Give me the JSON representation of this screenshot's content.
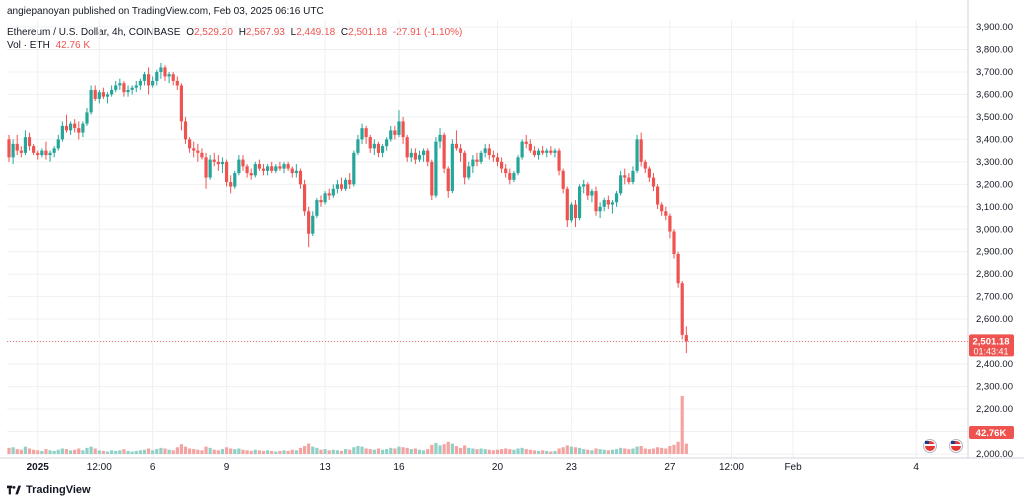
{
  "header": {
    "publisher": "angiepanoyan published on TradingView.com, Feb 03, 2025 06:16 UTC",
    "symbol": "Ethereum / U.S. Dollar, 4h, COINBASE",
    "ohlc": {
      "o_label": "O",
      "o": "2,529.20",
      "h_label": "H",
      "h": "2,567.93",
      "l_label": "L",
      "l": "2,449.18",
      "c_label": "C",
      "c": "2,501.18",
      "change": "-27.91 (-1.10%)"
    },
    "volume_label": "Vol · ETH",
    "volume_value": "42.76 K"
  },
  "footer": {
    "brand": "TradingView"
  },
  "colors": {
    "up": "#26a69a",
    "down": "#ef5350",
    "up_vol": "#8fd1c7",
    "down_vol": "#f5a3a1",
    "grid": "#eef0f3"
  },
  "price_badge": {
    "price": "2,501.18",
    "countdown": "01:43:41"
  },
  "volume_badge": "42.76K",
  "icons": [
    "event-flag-icon",
    "event-flag-icon"
  ],
  "chart_data": {
    "type": "candlestick",
    "timeframe": "4h",
    "y_ticks": [
      "3,900.00",
      "3,800.00",
      "3,700.00",
      "3,600.00",
      "3,500.00",
      "3,400.00",
      "3,300.00",
      "3,200.00",
      "3,100.00",
      "3,000.00",
      "2,900.00",
      "2,800.00",
      "2,700.00",
      "2,600.00",
      "2,500.00",
      "2,400.00",
      "2,300.00",
      "2,200.00",
      "2,100.00",
      "2,000.00"
    ],
    "y_tick_values": [
      3900,
      3800,
      3700,
      3600,
      3500,
      3400,
      3300,
      3200,
      3100,
      3000,
      2900,
      2800,
      2700,
      2600,
      2500,
      2400,
      2300,
      2200,
      2100,
      2000
    ],
    "ylim": [
      2000,
      3950
    ],
    "x_ticks": [
      {
        "label": "2025",
        "index": 7,
        "bold": true
      },
      {
        "label": "12:00",
        "index": 22,
        "bold": false
      },
      {
        "label": "6",
        "index": 35,
        "bold": false
      },
      {
        "label": "9",
        "index": 53,
        "bold": false
      },
      {
        "label": "13",
        "index": 77,
        "bold": false
      },
      {
        "label": "16",
        "index": 95,
        "bold": false
      },
      {
        "label": "20",
        "index": 119,
        "bold": false
      },
      {
        "label": "23",
        "index": 137,
        "bold": false
      },
      {
        "label": "27",
        "index": 161,
        "bold": false
      },
      {
        "label": "12:00",
        "index": 176,
        "bold": false
      },
      {
        "label": "Feb",
        "index": 191,
        "bold": false
      },
      {
        "label": "4",
        "index": 221,
        "bold": false
      }
    ],
    "candles": [
      [
        3400,
        3420,
        3300,
        3320,
        10
      ],
      [
        3320,
        3400,
        3290,
        3380,
        11
      ],
      [
        3380,
        3420,
        3330,
        3350,
        8
      ],
      [
        3350,
        3370,
        3320,
        3340,
        7
      ],
      [
        3340,
        3440,
        3330,
        3410,
        12
      ],
      [
        3410,
        3430,
        3350,
        3370,
        9
      ],
      [
        3370,
        3380,
        3330,
        3340,
        7
      ],
      [
        3340,
        3350,
        3310,
        3330,
        6
      ],
      [
        3330,
        3360,
        3320,
        3350,
        5
      ],
      [
        3350,
        3390,
        3310,
        3330,
        8
      ],
      [
        3330,
        3350,
        3300,
        3340,
        6
      ],
      [
        3340,
        3370,
        3320,
        3360,
        5
      ],
      [
        3360,
        3420,
        3350,
        3400,
        7
      ],
      [
        3400,
        3480,
        3390,
        3460,
        9
      ],
      [
        3460,
        3510,
        3430,
        3440,
        8
      ],
      [
        3440,
        3480,
        3420,
        3470,
        6
      ],
      [
        3470,
        3490,
        3430,
        3450,
        7
      ],
      [
        3450,
        3480,
        3400,
        3430,
        9
      ],
      [
        3430,
        3480,
        3410,
        3470,
        6
      ],
      [
        3470,
        3540,
        3460,
        3520,
        10
      ],
      [
        3520,
        3640,
        3510,
        3620,
        12
      ],
      [
        3620,
        3640,
        3570,
        3580,
        9
      ],
      [
        3580,
        3620,
        3560,
        3610,
        6
      ],
      [
        3610,
        3630,
        3580,
        3590,
        5
      ],
      [
        3590,
        3610,
        3560,
        3600,
        4
      ],
      [
        3600,
        3640,
        3590,
        3620,
        6
      ],
      [
        3620,
        3660,
        3610,
        3640,
        5
      ],
      [
        3640,
        3670,
        3620,
        3650,
        6
      ],
      [
        3650,
        3660,
        3590,
        3610,
        8
      ],
      [
        3610,
        3640,
        3590,
        3620,
        5
      ],
      [
        3620,
        3640,
        3600,
        3630,
        4
      ],
      [
        3630,
        3660,
        3610,
        3640,
        5
      ],
      [
        3640,
        3670,
        3620,
        3660,
        6
      ],
      [
        3660,
        3700,
        3640,
        3690,
        7
      ],
      [
        3690,
        3720,
        3600,
        3640,
        9
      ],
      [
        3640,
        3680,
        3630,
        3660,
        6
      ],
      [
        3660,
        3710,
        3640,
        3700,
        8
      ],
      [
        3700,
        3740,
        3670,
        3720,
        10
      ],
      [
        3720,
        3730,
        3660,
        3680,
        9
      ],
      [
        3680,
        3700,
        3650,
        3690,
        7
      ],
      [
        3690,
        3700,
        3640,
        3660,
        6
      ],
      [
        3660,
        3680,
        3620,
        3640,
        11
      ],
      [
        3640,
        3650,
        3440,
        3480,
        16
      ],
      [
        3480,
        3500,
        3380,
        3400,
        12
      ],
      [
        3400,
        3410,
        3340,
        3360,
        9
      ],
      [
        3360,
        3390,
        3320,
        3350,
        8
      ],
      [
        3350,
        3380,
        3300,
        3340,
        7
      ],
      [
        3340,
        3360,
        3310,
        3320,
        6
      ],
      [
        3320,
        3340,
        3180,
        3230,
        12
      ],
      [
        3230,
        3330,
        3220,
        3310,
        10
      ],
      [
        3310,
        3340,
        3280,
        3300,
        7
      ],
      [
        3300,
        3330,
        3260,
        3290,
        6
      ],
      [
        3290,
        3320,
        3250,
        3300,
        8
      ],
      [
        3300,
        3310,
        3190,
        3210,
        11
      ],
      [
        3210,
        3240,
        3160,
        3190,
        9
      ],
      [
        3190,
        3260,
        3180,
        3250,
        8
      ],
      [
        3250,
        3330,
        3240,
        3310,
        9
      ],
      [
        3310,
        3330,
        3260,
        3280,
        7
      ],
      [
        3280,
        3290,
        3230,
        3250,
        6
      ],
      [
        3250,
        3270,
        3220,
        3240,
        5
      ],
      [
        3240,
        3300,
        3230,
        3290,
        7
      ],
      [
        3290,
        3310,
        3260,
        3270,
        6
      ],
      [
        3270,
        3290,
        3240,
        3260,
        5
      ],
      [
        3260,
        3290,
        3240,
        3280,
        6
      ],
      [
        3280,
        3300,
        3250,
        3260,
        5
      ],
      [
        3260,
        3290,
        3250,
        3280,
        4
      ],
      [
        3280,
        3300,
        3260,
        3270,
        5
      ],
      [
        3270,
        3300,
        3250,
        3290,
        6
      ],
      [
        3290,
        3300,
        3260,
        3270,
        5
      ],
      [
        3270,
        3280,
        3230,
        3250,
        7
      ],
      [
        3250,
        3290,
        3230,
        3260,
        6
      ],
      [
        3260,
        3270,
        3180,
        3200,
        10
      ],
      [
        3200,
        3220,
        3060,
        3080,
        13
      ],
      [
        3080,
        3100,
        2920,
        2980,
        17
      ],
      [
        2980,
        3080,
        2970,
        3060,
        12
      ],
      [
        3060,
        3140,
        3050,
        3130,
        10
      ],
      [
        3130,
        3150,
        3100,
        3120,
        7
      ],
      [
        3120,
        3170,
        3110,
        3160,
        8
      ],
      [
        3160,
        3180,
        3130,
        3150,
        6
      ],
      [
        3150,
        3200,
        3140,
        3180,
        7
      ],
      [
        3180,
        3220,
        3160,
        3200,
        6
      ],
      [
        3200,
        3230,
        3170,
        3180,
        5
      ],
      [
        3180,
        3230,
        3170,
        3220,
        8
      ],
      [
        3220,
        3250,
        3180,
        3200,
        7
      ],
      [
        3200,
        3350,
        3190,
        3340,
        11
      ],
      [
        3340,
        3420,
        3330,
        3400,
        13
      ],
      [
        3400,
        3470,
        3380,
        3450,
        12
      ],
      [
        3450,
        3460,
        3380,
        3410,
        9
      ],
      [
        3410,
        3420,
        3340,
        3360,
        8
      ],
      [
        3360,
        3400,
        3330,
        3380,
        7
      ],
      [
        3380,
        3390,
        3320,
        3340,
        9
      ],
      [
        3340,
        3380,
        3320,
        3370,
        7
      ],
      [
        3370,
        3410,
        3350,
        3400,
        8
      ],
      [
        3400,
        3460,
        3390,
        3440,
        10
      ],
      [
        3440,
        3460,
        3400,
        3420,
        9
      ],
      [
        3420,
        3530,
        3410,
        3480,
        12
      ],
      [
        3480,
        3500,
        3380,
        3410,
        11
      ],
      [
        3410,
        3420,
        3300,
        3320,
        10
      ],
      [
        3320,
        3360,
        3300,
        3340,
        8
      ],
      [
        3340,
        3360,
        3290,
        3310,
        9
      ],
      [
        3310,
        3350,
        3300,
        3330,
        7
      ],
      [
        3330,
        3360,
        3300,
        3350,
        6
      ],
      [
        3350,
        3360,
        3280,
        3300,
        8
      ],
      [
        3300,
        3310,
        3130,
        3150,
        15
      ],
      [
        3150,
        3410,
        3140,
        3390,
        18
      ],
      [
        3390,
        3450,
        3360,
        3420,
        14
      ],
      [
        3420,
        3430,
        3250,
        3270,
        16
      ],
      [
        3270,
        3280,
        3140,
        3170,
        20
      ],
      [
        3170,
        3400,
        3160,
        3380,
        17
      ],
      [
        3380,
        3440,
        3350,
        3360,
        13
      ],
      [
        3360,
        3380,
        3300,
        3340,
        10
      ],
      [
        3340,
        3350,
        3200,
        3230,
        14
      ],
      [
        3230,
        3300,
        3220,
        3280,
        10
      ],
      [
        3280,
        3330,
        3250,
        3310,
        9
      ],
      [
        3310,
        3340,
        3280,
        3300,
        8
      ],
      [
        3300,
        3350,
        3290,
        3340,
        9
      ],
      [
        3340,
        3380,
        3320,
        3360,
        8
      ],
      [
        3360,
        3380,
        3310,
        3330,
        7
      ],
      [
        3330,
        3350,
        3300,
        3320,
        6
      ],
      [
        3320,
        3340,
        3280,
        3300,
        7
      ],
      [
        3300,
        3320,
        3250,
        3270,
        8
      ],
      [
        3270,
        3290,
        3230,
        3250,
        9
      ],
      [
        3250,
        3270,
        3200,
        3220,
        8
      ],
      [
        3220,
        3260,
        3210,
        3250,
        7
      ],
      [
        3250,
        3330,
        3240,
        3320,
        9
      ],
      [
        3320,
        3400,
        3310,
        3390,
        10
      ],
      [
        3390,
        3420,
        3360,
        3380,
        8
      ],
      [
        3380,
        3400,
        3340,
        3350,
        7
      ],
      [
        3350,
        3370,
        3320,
        3330,
        6
      ],
      [
        3330,
        3360,
        3310,
        3350,
        5
      ],
      [
        3350,
        3370,
        3330,
        3340,
        6
      ],
      [
        3340,
        3360,
        3320,
        3350,
        5
      ],
      [
        3350,
        3370,
        3330,
        3340,
        4
      ],
      [
        3340,
        3360,
        3320,
        3350,
        5
      ],
      [
        3350,
        3360,
        3240,
        3260,
        9
      ],
      [
        3260,
        3270,
        3160,
        3180,
        11
      ],
      [
        3180,
        3190,
        3010,
        3040,
        14
      ],
      [
        3040,
        3120,
        3030,
        3110,
        12
      ],
      [
        3110,
        3130,
        3010,
        3050,
        11
      ],
      [
        3050,
        3200,
        3040,
        3190,
        10
      ],
      [
        3190,
        3220,
        3160,
        3200,
        8
      ],
      [
        3200,
        3210,
        3130,
        3150,
        7
      ],
      [
        3150,
        3180,
        3120,
        3170,
        6
      ],
      [
        3170,
        3190,
        3060,
        3080,
        9
      ],
      [
        3080,
        3120,
        3050,
        3100,
        8
      ],
      [
        3100,
        3140,
        3080,
        3130,
        7
      ],
      [
        3130,
        3150,
        3090,
        3110,
        6
      ],
      [
        3110,
        3130,
        3070,
        3120,
        7
      ],
      [
        3120,
        3170,
        3100,
        3160,
        8
      ],
      [
        3160,
        3260,
        3150,
        3240,
        10
      ],
      [
        3240,
        3270,
        3200,
        3230,
        9
      ],
      [
        3230,
        3250,
        3200,
        3210,
        8
      ],
      [
        3210,
        3280,
        3200,
        3260,
        9
      ],
      [
        3260,
        3420,
        3250,
        3400,
        12
      ],
      [
        3400,
        3430,
        3280,
        3300,
        13
      ],
      [
        3300,
        3310,
        3250,
        3270,
        9
      ],
      [
        3270,
        3280,
        3210,
        3230,
        8
      ],
      [
        3230,
        3250,
        3170,
        3190,
        9
      ],
      [
        3190,
        3200,
        3090,
        3110,
        11
      ],
      [
        3110,
        3120,
        3060,
        3080,
        10
      ],
      [
        3080,
        3100,
        3040,
        3060,
        9
      ],
      [
        3060,
        3070,
        2960,
        2990,
        13
      ],
      [
        2990,
        3000,
        2870,
        2890,
        15
      ],
      [
        2890,
        2900,
        2740,
        2760,
        20
      ],
      [
        2760,
        2770,
        2510,
        2530,
        70
      ],
      [
        2529.2,
        2567.93,
        2449.18,
        2501.18,
        17
      ]
    ]
  }
}
